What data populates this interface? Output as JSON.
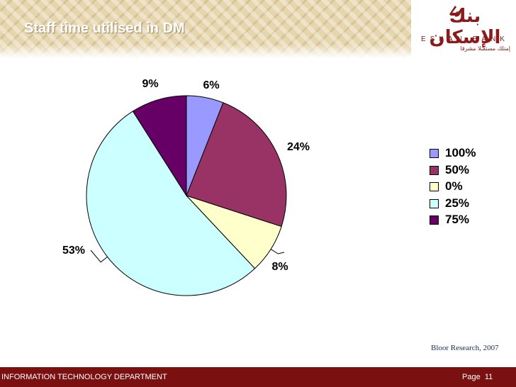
{
  "slide": {
    "title": "Staff time utilised in DM",
    "source": "Bloor Research, 2007"
  },
  "logo": {
    "arabic": "بنك الإسكان",
    "english": "ESKAN BANK",
    "tagline": "إمتلك مستقبلا مشرقا"
  },
  "footer": {
    "department": "INFORMATION TECHNOLOGY DEPARTMENT",
    "page_label": "Page",
    "page_number": "11"
  },
  "chart_data": {
    "type": "pie",
    "slices": [
      {
        "name": "100%",
        "value": 6,
        "label": "6%",
        "color": "#9999ff"
      },
      {
        "name": "50%",
        "value": 24,
        "label": "24%",
        "color": "#993366"
      },
      {
        "name": "0%",
        "value": 8,
        "label": "8%",
        "color": "#ffffcc"
      },
      {
        "name": "25%",
        "value": 53,
        "label": "53%",
        "color": "#ccffff"
      },
      {
        "name": "75%",
        "value": 9,
        "label": "9%",
        "color": "#660066"
      }
    ],
    "legend": "right"
  }
}
